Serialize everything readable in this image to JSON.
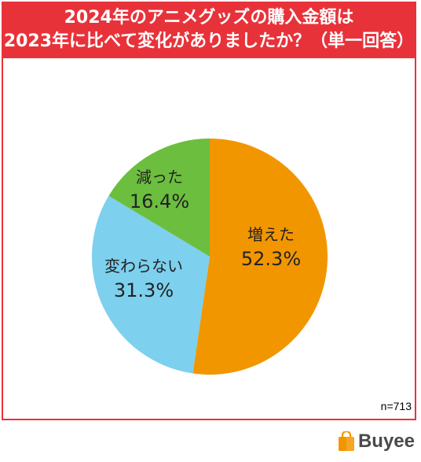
{
  "title": {
    "line1": "2024年のアニメグッズの購入金額は",
    "line2": "2023年に比べて変化がありましたか？（単一回答）"
  },
  "sample_size": "n=713",
  "logo": {
    "text": "Buyee",
    "icon": "shopping-bag-icon"
  },
  "colors": {
    "banner": "#e8323a",
    "increased": "#f29600",
    "unchanged": "#7dd0ee",
    "decreased": "#6cbe3f"
  },
  "chart_data": {
    "type": "pie",
    "title": "2024年のアニメグッズの購入金額は2023年に比べて変化がありましたか？（単一回答）",
    "start": "12 o'clock, clockwise",
    "slices": [
      {
        "label": "増えた",
        "value": 52.3,
        "display": "52.3%",
        "color": "#f29600"
      },
      {
        "label": "変わらない",
        "value": 31.3,
        "display": "31.3%",
        "color": "#7dd0ee"
      },
      {
        "label": "減った",
        "value": 16.4,
        "display": "16.4%",
        "color": "#6cbe3f"
      }
    ]
  }
}
